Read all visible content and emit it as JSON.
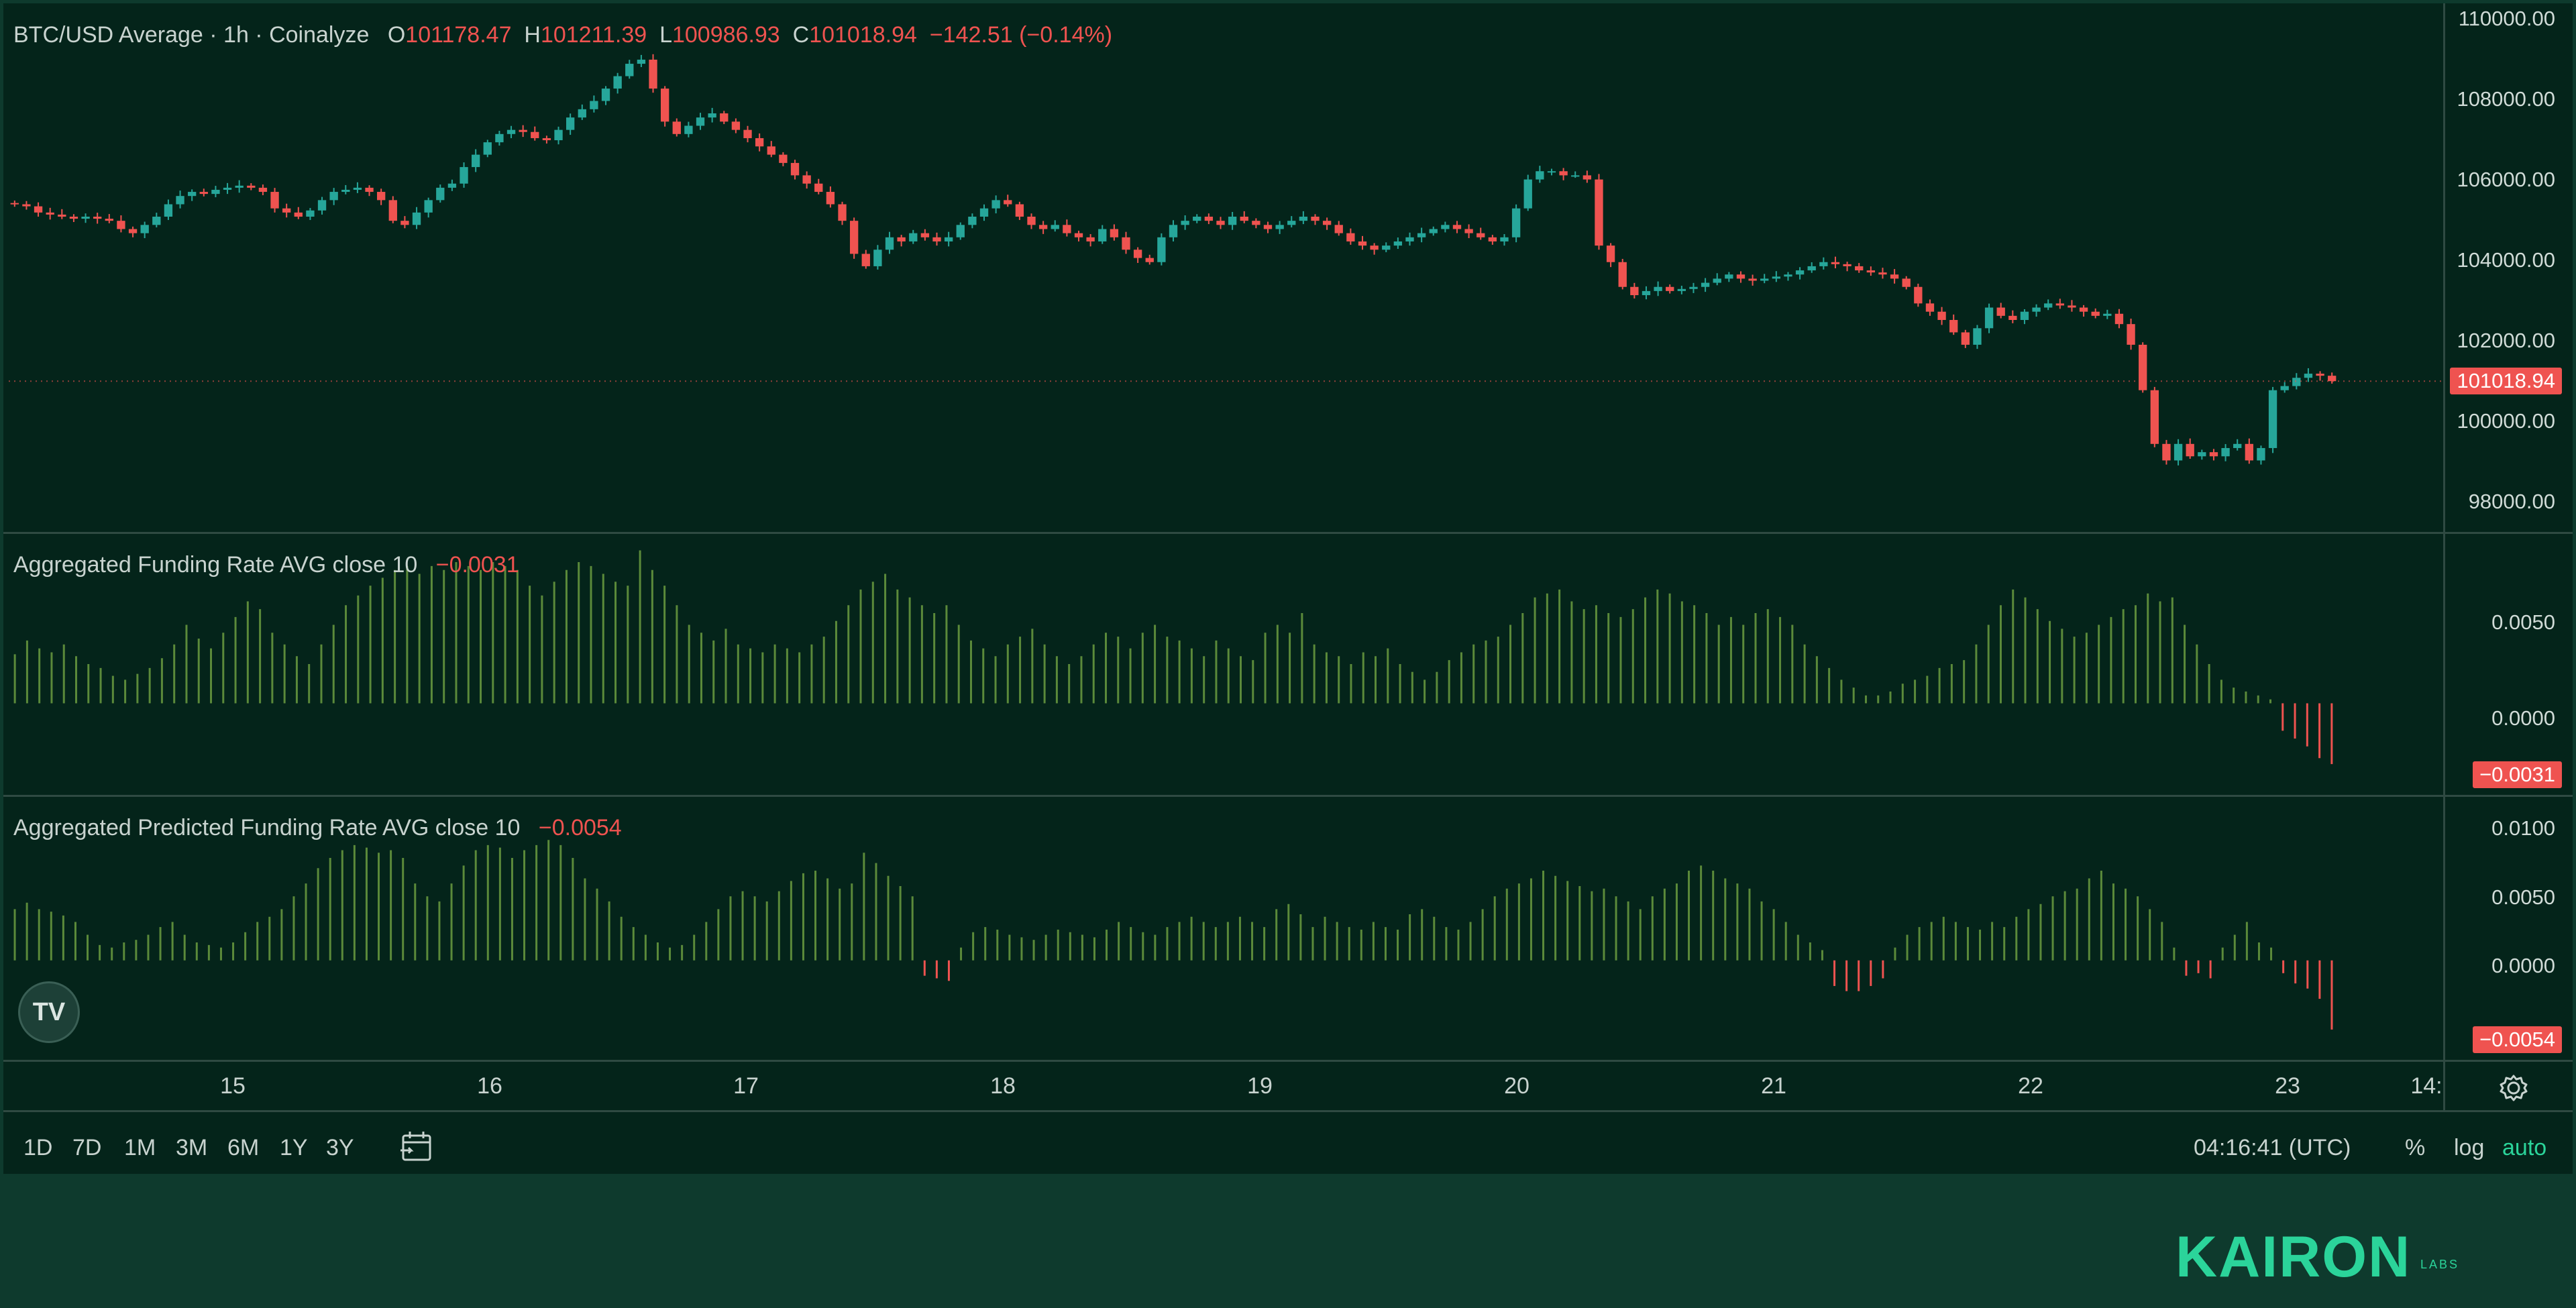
{
  "legend": {
    "symbol": "BTC/USD Average · 1h · Coinalyze",
    "o_label": "O",
    "o": "101178.47",
    "h_label": "H",
    "h": "101211.39",
    "l_label": "L",
    "l": "100986.93",
    "c_label": "C",
    "c": "101018.94",
    "change": "−142.51 (−0.14%)"
  },
  "price_axis": [
    "110000.00",
    "108000.00",
    "106000.00",
    "104000.00",
    "102000.00",
    "100000.00",
    "98000.00"
  ],
  "last_price_tag": "101018.94",
  "funding": {
    "title": "Aggregated Funding Rate AVG close 10",
    "value": "−0.0031",
    "ticks": [
      "0.0050",
      "0.0000"
    ],
    "tag": "−0.0031"
  },
  "predicted": {
    "title": "Aggregated Predicted Funding Rate AVG close 10",
    "value": "−0.0054",
    "ticks": [
      "0.0100",
      "0.0050",
      "0.0000"
    ],
    "tag": "−0.0054"
  },
  "time_axis": [
    "15",
    "16",
    "17",
    "18",
    "19",
    "20",
    "21",
    "22",
    "23",
    "14:"
  ],
  "timeframes": [
    "1D",
    "7D",
    "1M",
    "3M",
    "6M",
    "1Y",
    "3Y"
  ],
  "clock": "04:16:41 (UTC)",
  "scale_options": {
    "percent": "%",
    "log": "log",
    "auto": "auto"
  },
  "brand": {
    "name": "KAIRON",
    "suffix": "LABS"
  },
  "tv_logo": "TV",
  "colors": {
    "up": "#26a69a",
    "down": "#ef5350",
    "funding_pos": "#5b8a3a",
    "funding_neg": "#ef5350"
  },
  "chart_data": [
    {
      "type": "candlestick",
      "title": "BTC/USD Average · 1h · Coinalyze",
      "x_tick_labels": [
        "15",
        "16",
        "17",
        "18",
        "19",
        "20",
        "21",
        "22",
        "23"
      ],
      "ylim": [
        97500,
        110000
      ],
      "scale": "linear",
      "series": [
        {
          "name": "BTC/USD",
          "values": [
            105300,
            105250,
            105100,
            105050,
            105000,
            104950,
            105000,
            104950,
            104900,
            104700,
            104600,
            104800,
            105000,
            105300,
            105500,
            105600,
            105550,
            105650,
            105700,
            105750,
            105700,
            105600,
            105200,
            105100,
            105000,
            105150,
            105400,
            105600,
            105650,
            105700,
            105600,
            105400,
            104900,
            104800,
            105100,
            105400,
            105700,
            105800,
            106200,
            106500,
            106800,
            107000,
            107100,
            107050,
            106900,
            106850,
            107100,
            107400,
            107600,
            107800,
            108100,
            108400,
            108700,
            108800,
            108100,
            107300,
            107000,
            107200,
            107400,
            107500,
            107300,
            107100,
            106900,
            106700,
            106500,
            106300,
            106000,
            105800,
            105600,
            105300,
            104900,
            104100,
            103800,
            104200,
            104500,
            104400,
            104600,
            104500,
            104400,
            104500,
            104800,
            105000,
            105200,
            105400,
            105300,
            105000,
            104800,
            104700,
            104800,
            104600,
            104500,
            104400,
            104700,
            104500,
            104200,
            104000,
            103900,
            104500,
            104800,
            104900,
            105000,
            104900,
            104800,
            105000,
            104900,
            104800,
            104700,
            104800,
            104900,
            105000,
            104900,
            104800,
            104600,
            104400,
            104300,
            104200,
            104300,
            104400,
            104500,
            104600,
            104700,
            104800,
            104700,
            104600,
            104500,
            104400,
            104500,
            105200,
            105900,
            106100,
            106100,
            106000,
            106000,
            105900,
            104300,
            103900,
            103300,
            103100,
            103200,
            103300,
            103200,
            103250,
            103300,
            103400,
            103500,
            103600,
            103500,
            103450,
            103500,
            103550,
            103600,
            103700,
            103800,
            103900,
            103850,
            103800,
            103700,
            103650,
            103600,
            103500,
            103300,
            102900,
            102700,
            102500,
            102200,
            101900,
            102300,
            102800,
            102600,
            102500,
            102700,
            102800,
            102900,
            102850,
            102800,
            102700,
            102600,
            102650,
            102400,
            101900,
            100800,
            99500,
            99100,
            99500,
            99200,
            99300,
            99200,
            99400,
            99500,
            99100,
            99400,
            100800,
            100900,
            101100,
            101200,
            101150,
            101018.94
          ]
        }
      ]
    },
    {
      "type": "bar",
      "title": "Aggregated Funding Rate AVG close 10",
      "ylim": [
        -0.0045,
        0.0085
      ],
      "series": [
        {
          "name": "Funding Rate",
          "values": [
            0.0025,
            0.0032,
            0.0028,
            0.0026,
            0.003,
            0.0024,
            0.002,
            0.0018,
            0.0014,
            0.0012,
            0.0015,
            0.0018,
            0.0023,
            0.003,
            0.004,
            0.0033,
            0.0028,
            0.0036,
            0.0044,
            0.0052,
            0.0048,
            0.0036,
            0.003,
            0.0024,
            0.002,
            0.003,
            0.004,
            0.005,
            0.0055,
            0.006,
            0.0064,
            0.0068,
            0.007,
            0.0066,
            0.007,
            0.0068,
            0.0072,
            0.007,
            0.0068,
            0.0072,
            0.007,
            0.0068,
            0.006,
            0.0055,
            0.0062,
            0.0068,
            0.0072,
            0.007,
            0.0066,
            0.0062,
            0.006,
            0.0078,
            0.0068,
            0.006,
            0.005,
            0.004,
            0.0036,
            0.0032,
            0.0038,
            0.003,
            0.0028,
            0.0026,
            0.003,
            0.0028,
            0.0026,
            0.003,
            0.0034,
            0.0042,
            0.005,
            0.0058,
            0.0062,
            0.0066,
            0.0058,
            0.0054,
            0.005,
            0.0046,
            0.005,
            0.004,
            0.0032,
            0.0028,
            0.0024,
            0.003,
            0.0034,
            0.0038,
            0.003,
            0.0024,
            0.002,
            0.0024,
            0.003,
            0.0036,
            0.0034,
            0.0028,
            0.0036,
            0.004,
            0.0034,
            0.0032,
            0.0028,
            0.0024,
            0.0032,
            0.0028,
            0.0024,
            0.0022,
            0.0036,
            0.004,
            0.0036,
            0.0046,
            0.003,
            0.0026,
            0.0024,
            0.002,
            0.0026,
            0.0024,
            0.0028,
            0.002,
            0.0016,
            0.0012,
            0.0016,
            0.0022,
            0.0026,
            0.003,
            0.0032,
            0.0034,
            0.004,
            0.0046,
            0.0054,
            0.0056,
            0.0058,
            0.0052,
            0.0048,
            0.005,
            0.0046,
            0.0044,
            0.0048,
            0.0054,
            0.0058,
            0.0056,
            0.0052,
            0.005,
            0.0046,
            0.004,
            0.0044,
            0.004,
            0.0046,
            0.0048,
            0.0044,
            0.004,
            0.003,
            0.0024,
            0.0018,
            0.0012,
            0.0008,
            0.0004,
            0.0004,
            0.0006,
            0.001,
            0.0012,
            0.0014,
            0.0018,
            0.002,
            0.0022,
            0.003,
            0.004,
            0.005,
            0.0058,
            0.0054,
            0.0048,
            0.0042,
            0.0038,
            0.0034,
            0.0036,
            0.004,
            0.0044,
            0.0048,
            0.005,
            0.0056,
            0.0052,
            0.0054,
            0.004,
            0.003,
            0.002,
            0.0012,
            0.0008,
            0.0006,
            0.0004,
            0.0002,
            -0.0014,
            -0.0018,
            -0.0022,
            -0.0028,
            -0.0031
          ]
        }
      ]
    },
    {
      "type": "bar",
      "title": "Aggregated Predicted Funding Rate AVG close 10",
      "ylim": [
        -0.0075,
        0.0125
      ],
      "series": [
        {
          "name": "Predicted Funding Rate",
          "values": [
            0.004,
            0.0045,
            0.004,
            0.0038,
            0.0035,
            0.003,
            0.002,
            0.0012,
            0.001,
            0.0014,
            0.0016,
            0.002,
            0.0026,
            0.003,
            0.002,
            0.0014,
            0.0012,
            0.001,
            0.0014,
            0.0022,
            0.003,
            0.0034,
            0.004,
            0.005,
            0.006,
            0.0072,
            0.008,
            0.0086,
            0.009,
            0.0088,
            0.0084,
            0.0086,
            0.008,
            0.006,
            0.005,
            0.0046,
            0.006,
            0.0074,
            0.0086,
            0.009,
            0.0088,
            0.008,
            0.0086,
            0.009,
            0.0094,
            0.009,
            0.008,
            0.0064,
            0.0056,
            0.0046,
            0.0034,
            0.0026,
            0.002,
            0.0014,
            0.001,
            0.0012,
            0.002,
            0.003,
            0.004,
            0.005,
            0.0054,
            0.005,
            0.0046,
            0.0054,
            0.0062,
            0.0068,
            0.007,
            0.0064,
            0.0056,
            0.006,
            0.0084,
            0.0076,
            0.0066,
            0.0058,
            0.005,
            -0.0012,
            -0.0014,
            -0.0016,
            0.001,
            0.0022,
            0.0026,
            0.0024,
            0.002,
            0.0018,
            0.0016,
            0.002,
            0.0024,
            0.0022,
            0.002,
            0.0018,
            0.0024,
            0.003,
            0.0026,
            0.0022,
            0.002,
            0.0026,
            0.003,
            0.0034,
            0.003,
            0.0026,
            0.003,
            0.0034,
            0.003,
            0.0026,
            0.004,
            0.0044,
            0.0036,
            0.0026,
            0.0034,
            0.003,
            0.0026,
            0.0024,
            0.003,
            0.0026,
            0.0024,
            0.0036,
            0.004,
            0.0034,
            0.0026,
            0.0024,
            0.003,
            0.004,
            0.005,
            0.0056,
            0.006,
            0.0064,
            0.007,
            0.0066,
            0.0062,
            0.0058,
            0.0054,
            0.0056,
            0.005,
            0.0046,
            0.004,
            0.005,
            0.0056,
            0.006,
            0.007,
            0.0074,
            0.007,
            0.0064,
            0.006,
            0.0056,
            0.0046,
            0.004,
            0.003,
            0.002,
            0.0014,
            0.0008,
            -0.002,
            -0.0024,
            -0.0024,
            -0.002,
            -0.0014,
            0.001,
            0.002,
            0.0026,
            0.003,
            0.0034,
            0.003,
            0.0026,
            0.0024,
            0.003,
            0.0026,
            0.0034,
            0.004,
            0.0044,
            0.005,
            0.0054,
            0.0056,
            0.0064,
            0.007,
            0.006,
            0.0056,
            0.005,
            0.004,
            0.003,
            0.001,
            -0.0012,
            -0.001,
            -0.0014,
            0.001,
            0.002,
            0.003,
            0.0014,
            0.001,
            -0.001,
            -0.0018,
            -0.0022,
            -0.003,
            -0.0054
          ]
        }
      ]
    }
  ]
}
